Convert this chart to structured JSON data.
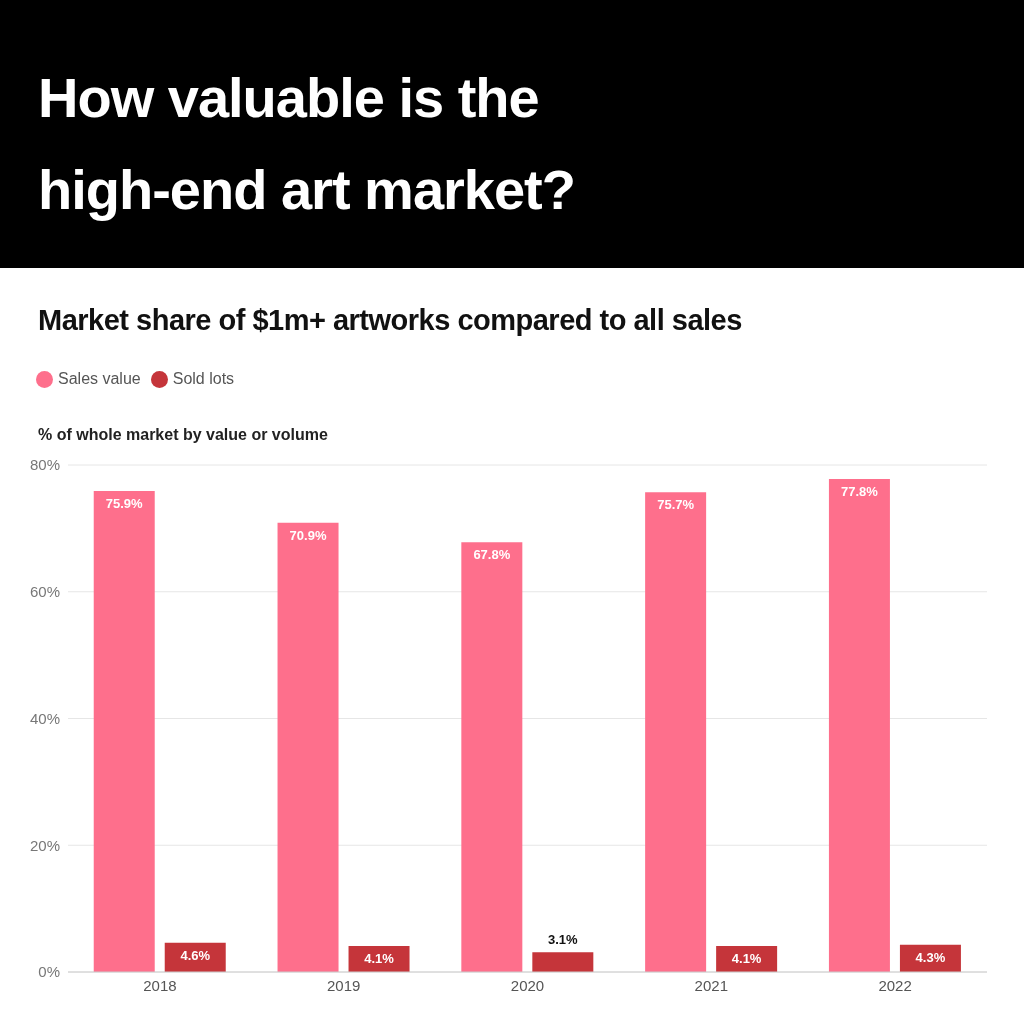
{
  "chart_data": {
    "type": "bar",
    "title": "How valuable is the high-end art market?",
    "subtitle": "Market share of $1m+ artworks compared to all sales",
    "ylabel": "% of whole market by value or volume",
    "categories": [
      "2018",
      "2019",
      "2020",
      "2021",
      "2022"
    ],
    "series": [
      {
        "name": "Sales value",
        "color": "#fe6f8c",
        "values": [
          75.9,
          70.9,
          67.8,
          75.7,
          77.8
        ],
        "value_labels": [
          "75.9%",
          "70.9%",
          "67.8%",
          "75.7%",
          "77.8%"
        ]
      },
      {
        "name": "Sold lots",
        "color": "#c5353a",
        "values": [
          4.6,
          4.1,
          3.1,
          4.1,
          4.3
        ],
        "value_labels": [
          "4.6%",
          "4.1%",
          "3.1%",
          "4.1%",
          "4.3%"
        ]
      }
    ],
    "ylim": [
      0,
      80
    ],
    "yticks": [
      {
        "value": 0,
        "label": "0%"
      },
      {
        "value": 20,
        "label": "20%"
      },
      {
        "value": 40,
        "label": "40%"
      },
      {
        "value": 60,
        "label": "60%"
      },
      {
        "value": 80,
        "label": "80%"
      }
    ],
    "grid": "y",
    "legend": "top left"
  }
}
